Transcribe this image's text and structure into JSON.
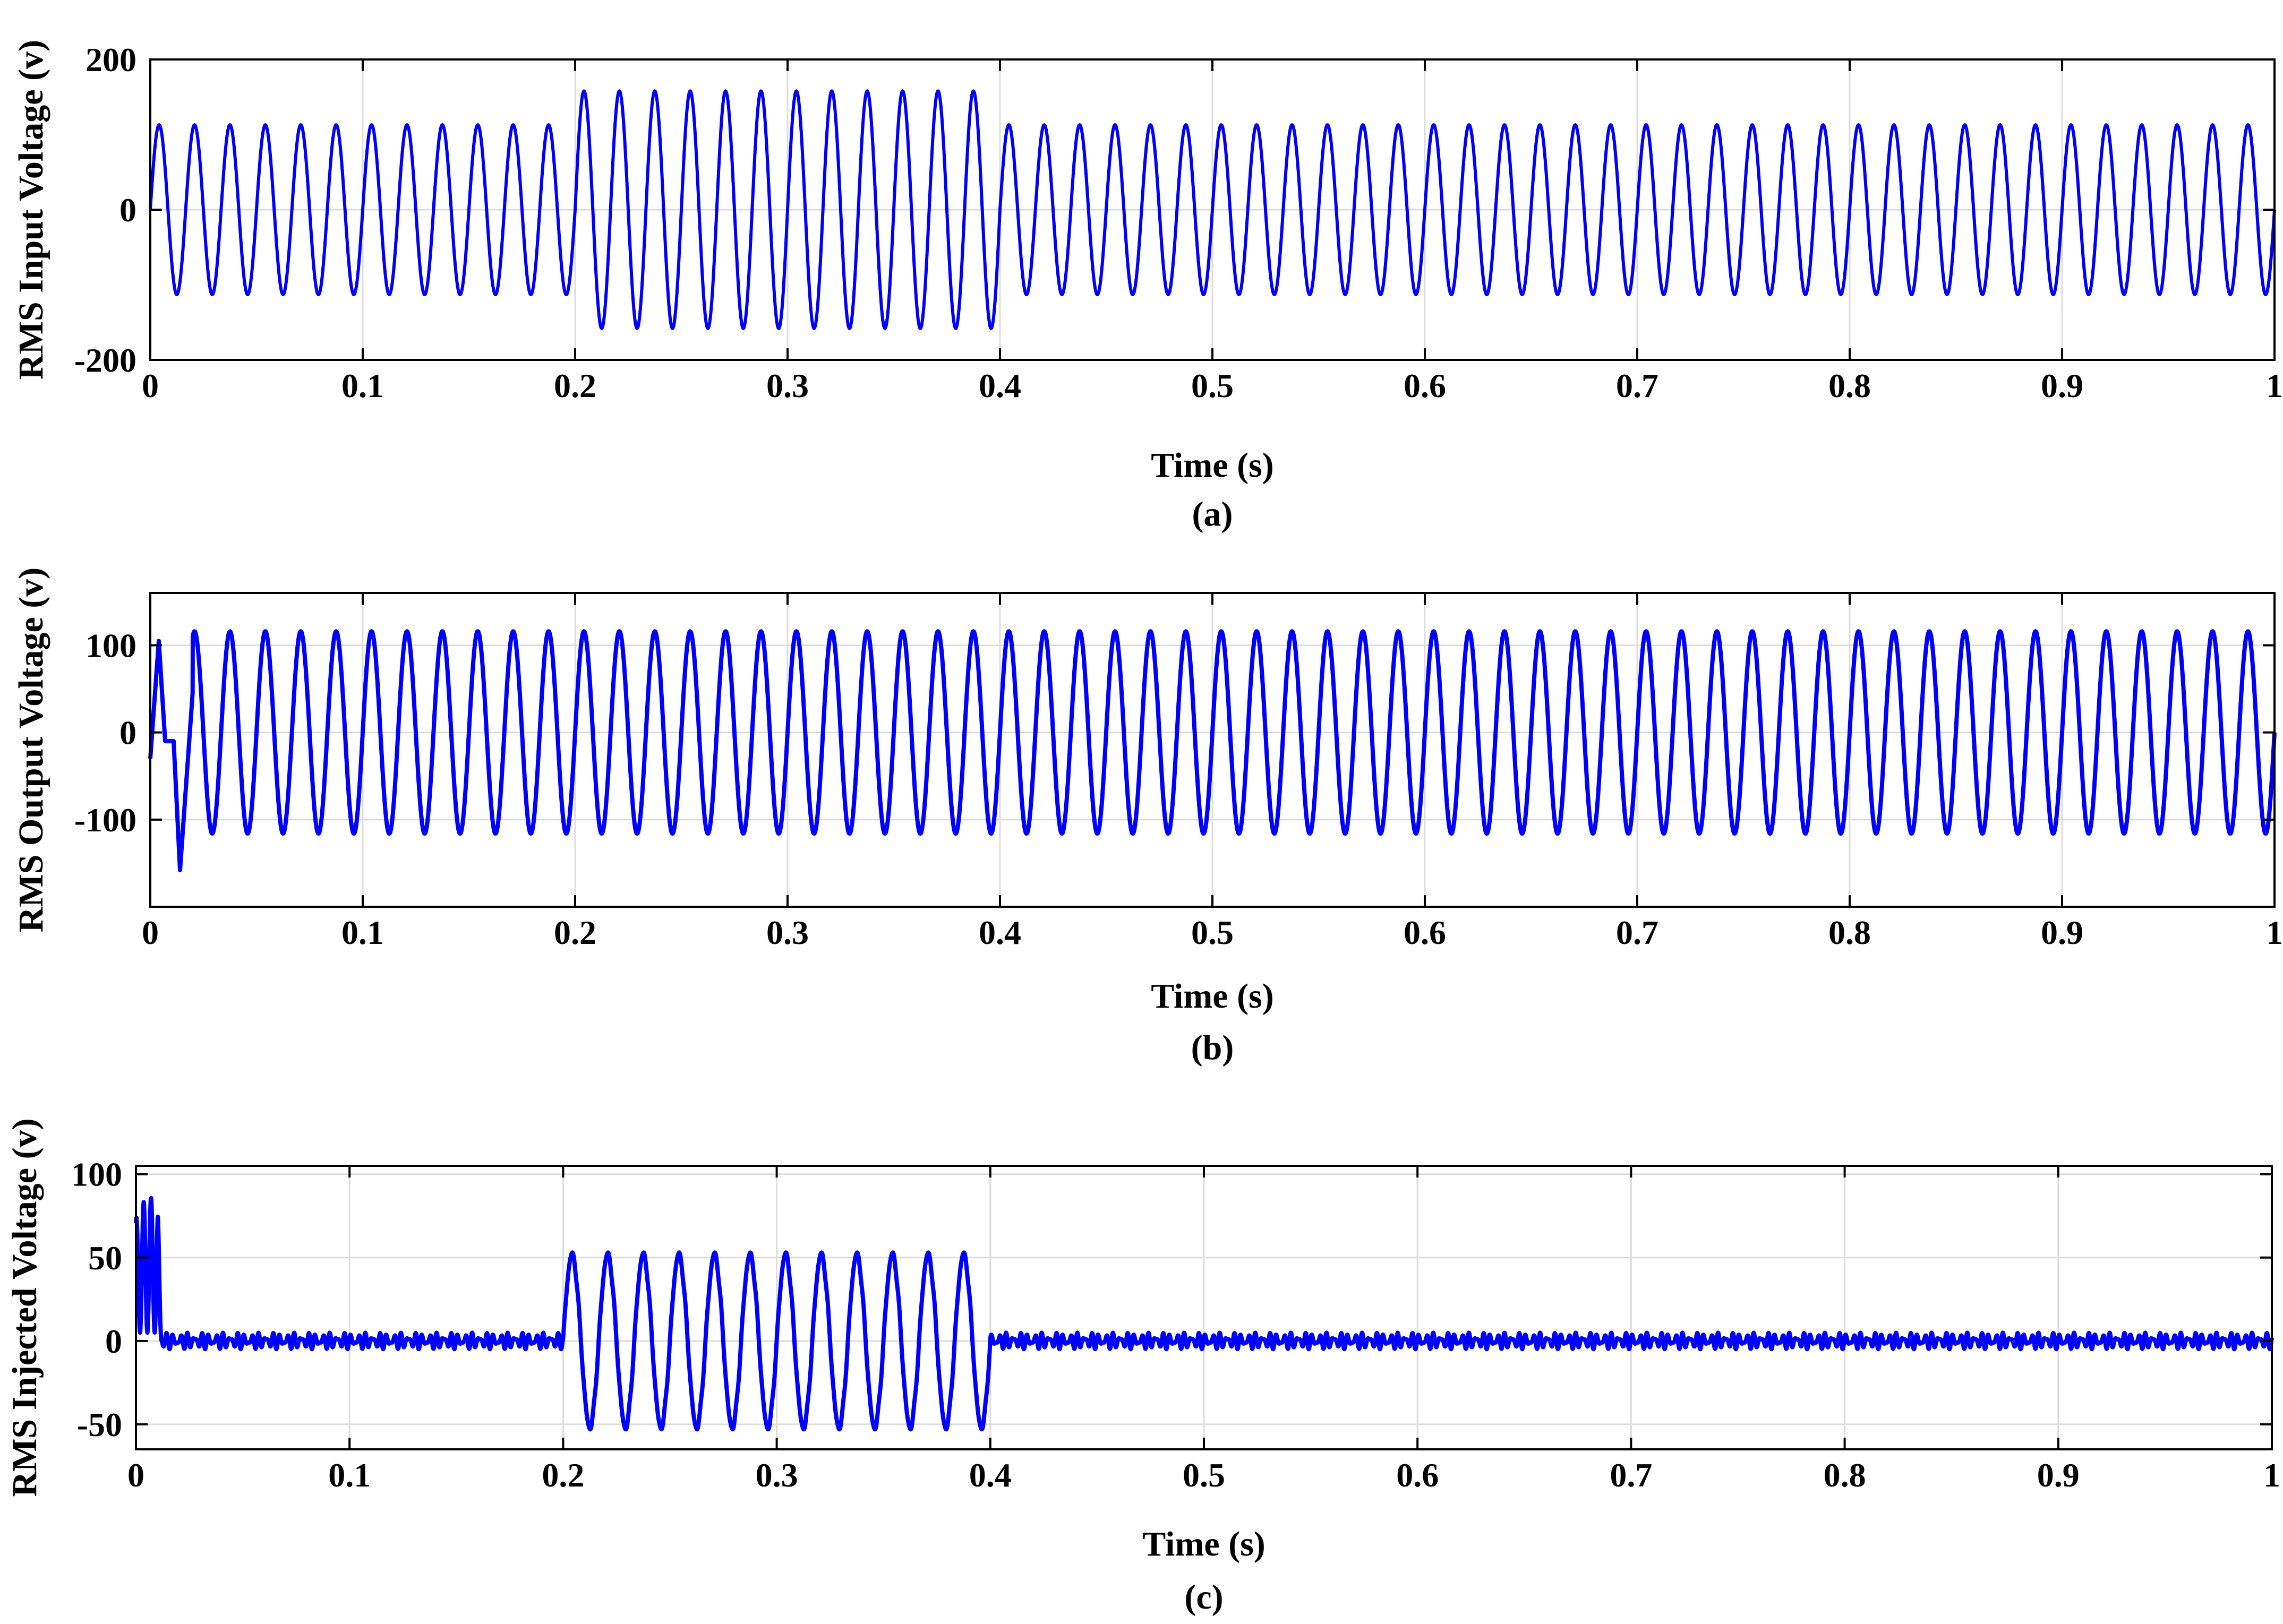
{
  "chart_data": [
    {
      "type": "line",
      "caption": "(a)",
      "xlabel": "Time (s)",
      "ylabel": "RMS Input Voltage (v)",
      "xlim": [
        0,
        1
      ],
      "ylim": [
        -200,
        200
      ],
      "x_ticks": [
        "0",
        "0.1",
        "0.2",
        "0.3",
        "0.4",
        "0.5",
        "0.6",
        "0.7",
        "0.8",
        "0.9",
        "1"
      ],
      "y_ticks": [
        -200,
        0,
        200
      ],
      "grid": true,
      "line_color": "#0000ff",
      "frequency_hz": 60,
      "segments": [
        {
          "t_start": 0,
          "t_end": 0.2,
          "amplitude": 113
        },
        {
          "t_start": 0.2,
          "t_end": 0.4,
          "amplitude": 158
        },
        {
          "t_start": 0.4,
          "t_end": 1,
          "amplitude": 113
        }
      ]
    },
    {
      "type": "line",
      "caption": "(b)",
      "xlabel": "Time (s)",
      "ylabel": "RMS Output Voltage (v)",
      "xlim": [
        0,
        1
      ],
      "ylim": [
        -200,
        160
      ],
      "x_ticks": [
        "0",
        "0.1",
        "0.2",
        "0.3",
        "0.4",
        "0.5",
        "0.6",
        "0.7",
        "0.8",
        "0.9",
        "1"
      ],
      "y_ticks": [
        -100,
        0,
        100
      ],
      "grid": true,
      "line_color": "#0000ff",
      "frequency_hz": 60,
      "segments": [
        {
          "t_start": 0,
          "t_end": 1,
          "amplitude": 116
        }
      ],
      "startup_transient": {
        "t_end": 0.02,
        "peak": 105,
        "trough": -158
      }
    },
    {
      "type": "line",
      "caption": "(c)",
      "xlabel": "Time (s)",
      "ylabel": "RMS Injected Voltage (v)",
      "xlim": [
        0,
        1
      ],
      "ylim": [
        -65,
        105
      ],
      "x_ticks": [
        "0",
        "0.1",
        "0.2",
        "0.3",
        "0.4",
        "0.5",
        "0.6",
        "0.7",
        "0.8",
        "0.9",
        "1"
      ],
      "y_ticks": [
        -50,
        0,
        50,
        100
      ],
      "grid": true,
      "line_color": "#0000ff",
      "frequency_hz": 60,
      "segments": [
        {
          "t_start": 0,
          "t_end": 0.2,
          "amplitude": 0,
          "ripple": 5
        },
        {
          "t_start": 0.2,
          "t_end": 0.4,
          "amplitude": 52,
          "ripple": 2
        },
        {
          "t_start": 0.4,
          "t_end": 1,
          "amplitude": 0,
          "ripple": 5
        }
      ],
      "startup_transient": {
        "t_end": 0.012,
        "peak": 86,
        "trough": 5
      }
    }
  ]
}
